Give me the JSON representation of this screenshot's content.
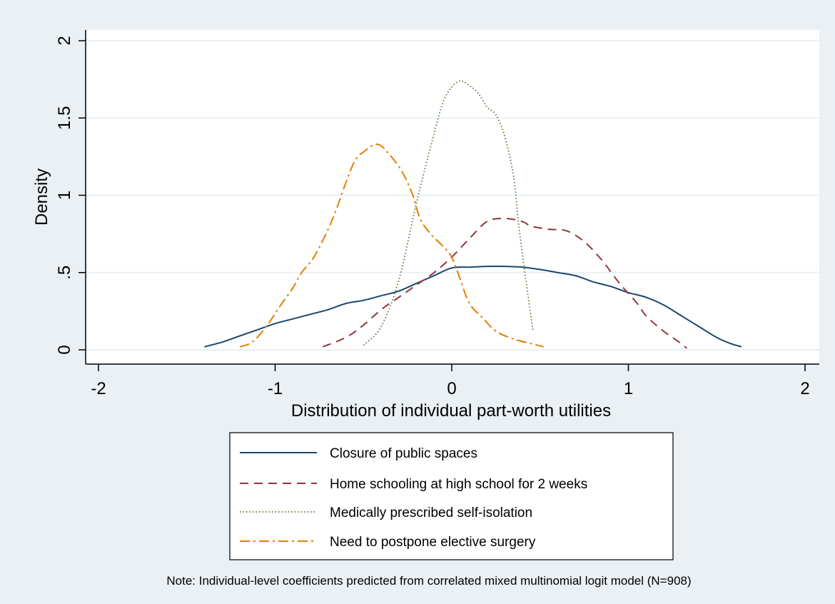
{
  "chart_data": {
    "type": "line",
    "title": "",
    "xlabel": "Distribution of individual part-worth utilities",
    "ylabel": "Density",
    "xlim": [
      -2.05,
      2.05
    ],
    "ylim": [
      0,
      2.05
    ],
    "x_ticks": [
      -2,
      -1,
      0,
      1,
      2
    ],
    "x_tick_labels": [
      "-2",
      "-1",
      "0",
      "1",
      "2"
    ],
    "y_ticks": [
      0,
      0.5,
      1,
      1.5,
      2
    ],
    "y_tick_labels": [
      "0",
      ".5",
      "1",
      "1.5",
      "2"
    ],
    "grid": "horizontal",
    "legend_placement": "bottom",
    "note": "Note: Individual-level coefficients predicted from correlated mixed multinomial logit model (N=908)",
    "series": [
      {
        "name": "Closure of public spaces",
        "color": "#1a476f",
        "style": "solid",
        "points": [
          [
            -1.4,
            0.02
          ],
          [
            -1.3,
            0.05
          ],
          [
            -1.2,
            0.09
          ],
          [
            -1.1,
            0.13
          ],
          [
            -1.0,
            0.17
          ],
          [
            -0.9,
            0.2
          ],
          [
            -0.8,
            0.23
          ],
          [
            -0.7,
            0.26
          ],
          [
            -0.6,
            0.3
          ],
          [
            -0.5,
            0.32
          ],
          [
            -0.4,
            0.35
          ],
          [
            -0.3,
            0.38
          ],
          [
            -0.2,
            0.43
          ],
          [
            -0.1,
            0.48
          ],
          [
            0.0,
            0.53
          ],
          [
            0.1,
            0.535
          ],
          [
            0.2,
            0.54
          ],
          [
            0.3,
            0.54
          ],
          [
            0.4,
            0.535
          ],
          [
            0.5,
            0.52
          ],
          [
            0.6,
            0.5
          ],
          [
            0.7,
            0.48
          ],
          [
            0.8,
            0.44
          ],
          [
            0.9,
            0.41
          ],
          [
            1.0,
            0.37
          ],
          [
            1.1,
            0.34
          ],
          [
            1.2,
            0.29
          ],
          [
            1.3,
            0.22
          ],
          [
            1.4,
            0.15
          ],
          [
            1.5,
            0.08
          ],
          [
            1.58,
            0.04
          ],
          [
            1.64,
            0.02
          ]
        ]
      },
      {
        "name": "Home schooling at high school for 2 weeks",
        "color": "#90353b",
        "style": "dashed",
        "points": [
          [
            -0.73,
            0.02
          ],
          [
            -0.6,
            0.08
          ],
          [
            -0.5,
            0.16
          ],
          [
            -0.4,
            0.26
          ],
          [
            -0.3,
            0.34
          ],
          [
            -0.2,
            0.42
          ],
          [
            -0.1,
            0.5
          ],
          [
            0.0,
            0.6
          ],
          [
            0.1,
            0.72
          ],
          [
            0.2,
            0.83
          ],
          [
            0.3,
            0.85
          ],
          [
            0.4,
            0.83
          ],
          [
            0.45,
            0.8
          ],
          [
            0.55,
            0.78
          ],
          [
            0.65,
            0.77
          ],
          [
            0.75,
            0.7
          ],
          [
            0.85,
            0.58
          ],
          [
            0.95,
            0.43
          ],
          [
            1.05,
            0.3
          ],
          [
            1.1,
            0.22
          ],
          [
            1.2,
            0.12
          ],
          [
            1.3,
            0.04
          ],
          [
            1.33,
            0.01
          ]
        ]
      },
      {
        "name": "Medically prescribed self-isolation",
        "color": "#55752f",
        "style": "dotted",
        "points": [
          [
            -0.5,
            0.03
          ],
          [
            -0.4,
            0.15
          ],
          [
            -0.3,
            0.45
          ],
          [
            -0.2,
            0.95
          ],
          [
            -0.1,
            1.4
          ],
          [
            -0.05,
            1.6
          ],
          [
            0.0,
            1.7
          ],
          [
            0.05,
            1.74
          ],
          [
            0.1,
            1.71
          ],
          [
            0.15,
            1.66
          ],
          [
            0.2,
            1.57
          ],
          [
            0.25,
            1.52
          ],
          [
            0.3,
            1.38
          ],
          [
            0.35,
            1.12
          ],
          [
            0.38,
            0.8
          ],
          [
            0.42,
            0.45
          ],
          [
            0.46,
            0.12
          ]
        ]
      },
      {
        "name": "Need to postpone elective surgery",
        "color": "#e37e00",
        "style": "dashdot",
        "points": [
          [
            -1.2,
            0.02
          ],
          [
            -1.13,
            0.05
          ],
          [
            -1.05,
            0.15
          ],
          [
            -0.98,
            0.27
          ],
          [
            -0.9,
            0.4
          ],
          [
            -0.85,
            0.5
          ],
          [
            -0.78,
            0.6
          ],
          [
            -0.7,
            0.78
          ],
          [
            -0.65,
            0.92
          ],
          [
            -0.6,
            1.08
          ],
          [
            -0.55,
            1.22
          ],
          [
            -0.5,
            1.28
          ],
          [
            -0.42,
            1.33
          ],
          [
            -0.35,
            1.26
          ],
          [
            -0.28,
            1.15
          ],
          [
            -0.22,
            1.0
          ],
          [
            -0.18,
            0.85
          ],
          [
            -0.12,
            0.75
          ],
          [
            -0.05,
            0.67
          ],
          [
            0.0,
            0.6
          ],
          [
            0.05,
            0.45
          ],
          [
            0.1,
            0.3
          ],
          [
            0.18,
            0.2
          ],
          [
            0.25,
            0.12
          ],
          [
            0.35,
            0.07
          ],
          [
            0.45,
            0.04
          ],
          [
            0.52,
            0.02
          ]
        ]
      }
    ]
  }
}
